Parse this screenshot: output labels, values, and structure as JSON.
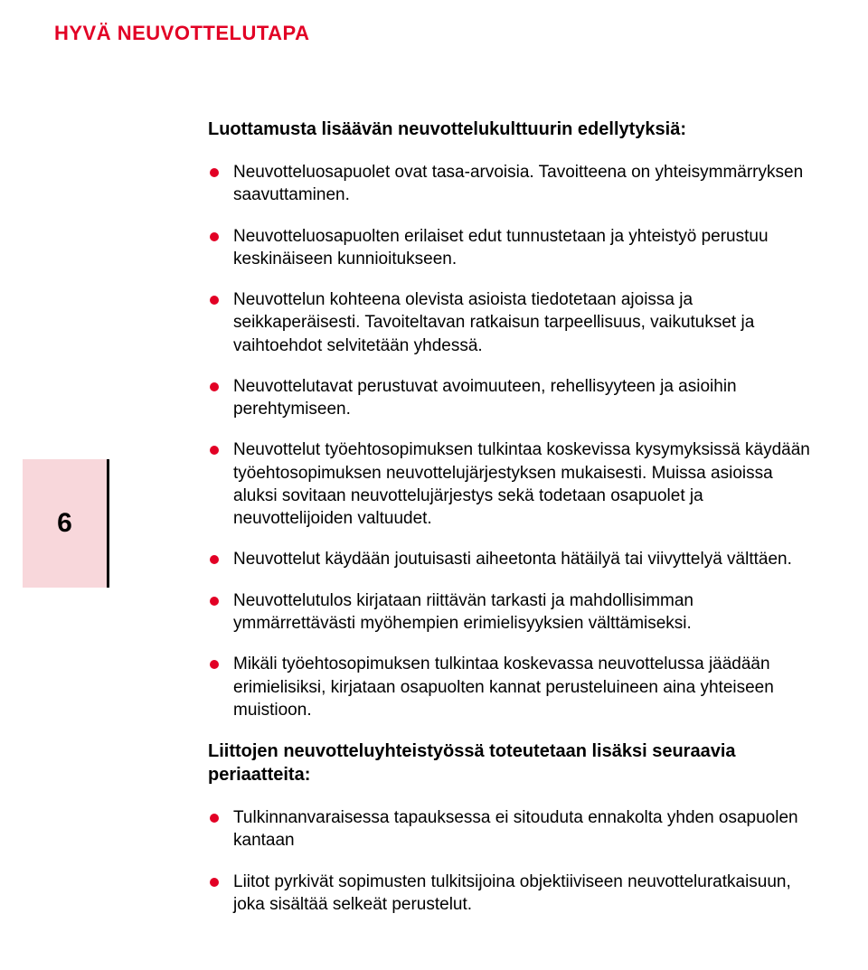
{
  "document": {
    "title": "HYVÄ NEUVOTTELUTAPA",
    "page_number": "6",
    "title_color": "#e20025",
    "bullet_color": "#e20025",
    "page_tab_bg": "#f8d7db",
    "text_color": "#000000",
    "body_fontsize": 19,
    "title_fontsize": 22,
    "subheading_fontsize": 20,
    "subheading_1": "Luottamusta lisäävän neuvottelukulttuurin edellytyksiä:",
    "list_1": [
      "Neuvotteluosapuolet ovat tasa-arvoisia. Tavoitteena on yhteisymmärryksen saavuttaminen.",
      "Neuvotteluosapuolten erilaiset edut tunnustetaan ja yhteistyö perustuu keskinäiseen kunnioitukseen.",
      "Neuvottelun kohteena olevista asioista tiedotetaan ajoissa ja seikkaperäisesti. Tavoiteltavan ratkaisun tarpeellisuus, vaikutukset ja vaihtoehdot selvitetään yhdessä.",
      "Neuvottelutavat perustuvat avoimuuteen, rehellisyyteen ja asioihin perehtymiseen.",
      "Neuvottelut työehtosopimuksen tulkintaa koskevissa kysymyksissä käydään työehtosopimuksen neuvottelujärjestyksen mukaisesti. Muissa asioissa aluksi sovitaan neuvottelujärjestys sekä todetaan osapuolet ja neuvottelijoiden valtuudet.",
      "Neuvottelut käydään joutuisasti aiheetonta hätäilyä tai viivyttelyä välttäen.",
      "Neuvottelutulos kirjataan riittävän tarkasti ja mahdollisimman ymmärrettävästi myöhempien erimielisyyksien välttämiseksi.",
      "Mikäli työehtosopimuksen tulkintaa koskevassa neuvottelussa jäädään erimielisiksi, kirjataan osapuolten kannat perusteluineen aina yhteiseen muistioon."
    ],
    "subheading_2": "Liittojen neuvotteluyhteistyössä toteutetaan lisäksi seuraavia periaatteita:",
    "list_2": [
      "Tulkinnanvaraisessa tapauksessa ei sitouduta ennakolta yhden osapuolen kantaan",
      "Liitot pyrkivät sopimusten tulkitsijoina objektiiviseen neuvotteluratkaisuun, joka sisältää selkeät perustelut."
    ]
  }
}
